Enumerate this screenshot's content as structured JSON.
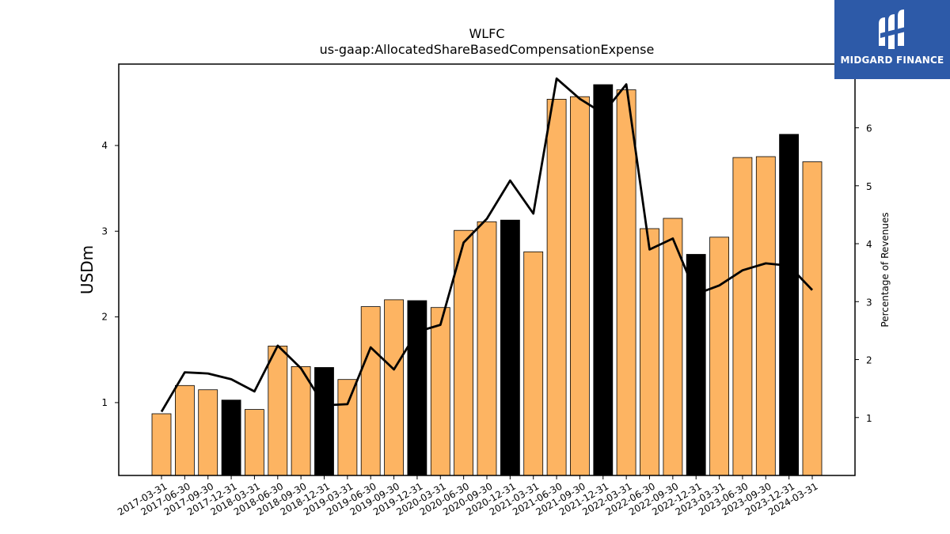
{
  "brand": {
    "name": "MIDGARD FINANCE",
    "colors": {
      "background": "#2d5aa8",
      "text": "#ffffff"
    }
  },
  "chart_data": {
    "type": "bar",
    "title": "WLFC",
    "subtitle": "us-gaap:AllocatedShareBasedCompensationExpense",
    "ylabel": "USDm",
    "y2label": "Percentage of Revenues",
    "ylim": [
      0.15,
      4.95
    ],
    "y2lim": [
      0,
      7.1
    ],
    "yticks": [
      1,
      2,
      3,
      4
    ],
    "y2ticks": [
      1,
      2,
      3,
      4,
      5,
      6
    ],
    "grid": false,
    "legend": "none",
    "colors": {
      "bar": "#fdb462",
      "bar_q4": "#000000",
      "line": "#000000",
      "edge": "#000000"
    },
    "categories": [
      "2017-03-31",
      "2017-06-30",
      "2017-09-30",
      "2017-12-31",
      "2018-03-31",
      "2018-06-30",
      "2018-09-30",
      "2018-12-31",
      "2019-03-31",
      "2019-06-30",
      "2019-09-30",
      "2019-12-31",
      "2020-03-31",
      "2020-06-30",
      "2020-09-30",
      "2020-12-31",
      "2021-03-31",
      "2021-06-30",
      "2021-09-30",
      "2021-12-31",
      "2022-03-31",
      "2022-06-30",
      "2022-09-30",
      "2022-12-31",
      "2023-03-31",
      "2023-06-30",
      "2023-09-30",
      "2023-12-31",
      "2024-03-31"
    ],
    "series": [
      {
        "type": "bar",
        "values": [
          0.87,
          1.2,
          1.15,
          1.03,
          0.92,
          1.66,
          1.42,
          1.41,
          1.27,
          2.12,
          2.2,
          2.19,
          2.11,
          3.01,
          3.11,
          3.13,
          2.76,
          4.54,
          4.57,
          4.71,
          4.65,
          3.03,
          3.15,
          2.73,
          2.93,
          3.86,
          3.87,
          4.13,
          3.81
        ],
        "highlight": [
          false,
          false,
          false,
          true,
          false,
          false,
          false,
          true,
          false,
          false,
          false,
          true,
          false,
          false,
          false,
          true,
          false,
          false,
          false,
          true,
          false,
          false,
          false,
          true,
          false,
          false,
          false,
          true,
          false
        ]
      },
      {
        "type": "line",
        "axis": "right",
        "values": [
          1.1,
          1.78,
          1.76,
          1.66,
          1.45,
          2.24,
          1.85,
          1.21,
          1.23,
          2.21,
          1.83,
          2.48,
          2.6,
          4.02,
          4.43,
          5.09,
          4.52,
          6.85,
          6.5,
          6.25,
          6.75,
          3.9,
          4.09,
          3.13,
          3.28,
          3.54,
          3.66,
          3.62,
          3.2
        ]
      }
    ]
  }
}
